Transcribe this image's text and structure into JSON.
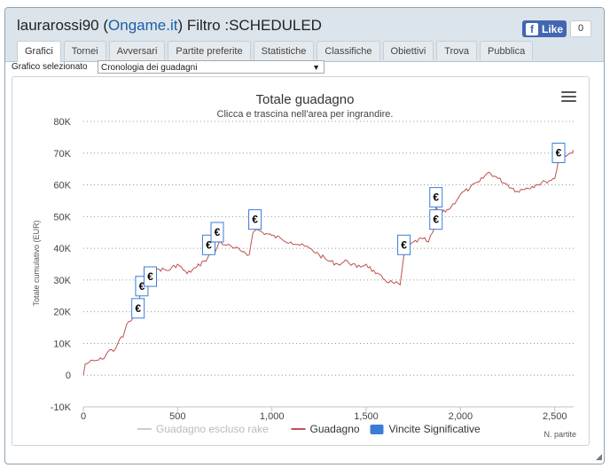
{
  "header": {
    "user": "laurarossi90",
    "site_open": "(",
    "site": "Ongame.it",
    "site_close": ")",
    "filter": "Filtro :SCHEDULED",
    "like_label": "Like",
    "like_count": "0"
  },
  "tabs": [
    "Grafici",
    "Tornei",
    "Avversari",
    "Partite preferite",
    "Statistiche",
    "Classifiche",
    "Obiettivi",
    "Trova",
    "Pubblica"
  ],
  "selector": {
    "label": "Grafico selezionato",
    "value": "Cronologia dei guadagni"
  },
  "chart_data": {
    "type": "line",
    "title": "Totale guadagno",
    "subtitle": "Clicca e trascina nell'area per ingrandire.",
    "ylabel": "Totale cumulativo (EUR)",
    "xlabel": "N. partite",
    "xlim": [
      0,
      2600
    ],
    "ylim": [
      -10000,
      80000
    ],
    "x_ticks": [
      "0",
      "500",
      "1,000",
      "1,500",
      "2,000",
      "2,500"
    ],
    "y_ticks": [
      "-10K",
      "0",
      "10K",
      "20K",
      "30K",
      "40K",
      "50K",
      "60K",
      "70K",
      "80K"
    ],
    "grid": "horizontal",
    "legend_position": "bottom",
    "series": [
      {
        "name": "Guadagno escluso rake",
        "color": "#cccccc",
        "values": []
      },
      {
        "name": "Guadagno",
        "color": "#c0504d",
        "x": [
          0,
          10,
          30,
          60,
          100,
          140,
          160,
          190,
          210,
          230,
          250,
          265,
          280,
          290,
          300,
          310,
          330,
          350,
          370,
          400,
          450,
          500,
          550,
          600,
          640,
          660,
          680,
          700,
          720,
          760,
          800,
          850,
          880,
          900,
          920,
          950,
          1000,
          1050,
          1100,
          1150,
          1200,
          1250,
          1300,
          1350,
          1400,
          1450,
          1500,
          1550,
          1600,
          1650,
          1680,
          1700,
          1720,
          1750,
          1800,
          1830,
          1860,
          1870,
          1880,
          1900,
          1950,
          2000,
          2050,
          2100,
          2150,
          2200,
          2250,
          2300,
          2350,
          2400,
          2450,
          2500,
          2520,
          2540,
          2560,
          2580,
          2600
        ],
        "values": [
          0,
          3500,
          4000,
          4500,
          5000,
          8000,
          7500,
          11000,
          12000,
          16000,
          17000,
          18500,
          20000,
          22000,
          25000,
          30000,
          31000,
          32000,
          33000,
          33500,
          33000,
          35000,
          32000,
          34000,
          36000,
          37000,
          40000,
          39000,
          42000,
          41000,
          40000,
          39000,
          38000,
          45000,
          46000,
          45000,
          44000,
          43000,
          42000,
          41000,
          40000,
          38000,
          36000,
          35000,
          36000,
          34000,
          35000,
          32000,
          30000,
          29000,
          28500,
          38000,
          40000,
          42000,
          43000,
          42000,
          46000,
          53000,
          52000,
          51000,
          53000,
          57000,
          59000,
          61000,
          64000,
          62000,
          60000,
          58000,
          59000,
          60000,
          61000,
          62000,
          68000,
          70000,
          69000,
          70000,
          71000
        ]
      },
      {
        "name": "Vincite Significative",
        "color": "#3a7dd8",
        "marker": "€",
        "x": [
          290,
          310,
          355,
          665,
          710,
          910,
          1700,
          1870,
          1870,
          2520
        ],
        "values": [
          18000,
          25000,
          28000,
          38000,
          42000,
          46000,
          38000,
          46000,
          53000,
          67000
        ]
      }
    ]
  }
}
